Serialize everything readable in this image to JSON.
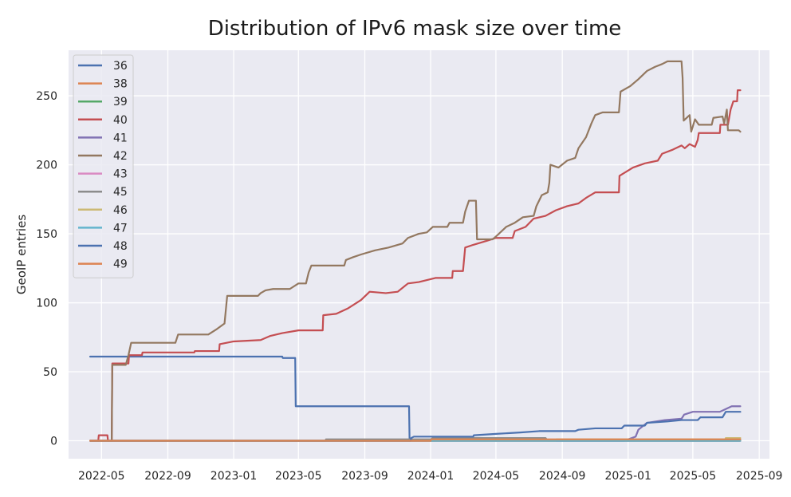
{
  "chart_data": {
    "type": "line",
    "title": "Distribution of IPv6 mask size over time",
    "xlabel": "",
    "ylabel": "GeoIP entries",
    "x_type": "date",
    "xlim": [
      "2022-03-01",
      "2025-09-20"
    ],
    "ylim": [
      -13,
      283
    ],
    "x_ticks": [
      "2022-05",
      "2022-09",
      "2023-01",
      "2023-05",
      "2023-09",
      "2024-01",
      "2024-05",
      "2024-09",
      "2025-01",
      "2025-05",
      "2025-09"
    ],
    "y_ticks": [
      0,
      50,
      100,
      150,
      200,
      250
    ],
    "grid": true,
    "legend_position": "upper-left",
    "series": [
      {
        "name": "36",
        "color": "#4c72b0",
        "points": [
          [
            "2022-04-10",
            61
          ],
          [
            "2023-04-01",
            61
          ],
          [
            "2023-04-02",
            60
          ],
          [
            "2023-04-25",
            60
          ],
          [
            "2023-04-26",
            25
          ],
          [
            "2023-11-22",
            25
          ],
          [
            "2023-11-23",
            0
          ],
          [
            "2025-07-28",
            0
          ]
        ]
      },
      {
        "name": "38",
        "color": "#dd8452",
        "points": [
          [
            "2022-04-10",
            0
          ],
          [
            "2025-07-28",
            0
          ]
        ]
      },
      {
        "name": "39",
        "color": "#55a868",
        "points": [
          [
            "2022-04-10",
            0
          ],
          [
            "2025-07-28",
            0
          ]
        ]
      },
      {
        "name": "40",
        "color": "#c44e52",
        "points": [
          [
            "2022-04-10",
            0
          ],
          [
            "2022-04-25",
            0
          ],
          [
            "2022-04-26",
            4
          ],
          [
            "2022-05-12",
            4
          ],
          [
            "2022-05-13",
            0
          ],
          [
            "2022-05-20",
            0
          ],
          [
            "2022-05-21",
            56
          ],
          [
            "2022-06-20",
            56
          ],
          [
            "2022-06-21",
            62
          ],
          [
            "2022-07-15",
            62
          ],
          [
            "2022-07-16",
            64
          ],
          [
            "2022-10-20",
            64
          ],
          [
            "2022-10-21",
            65
          ],
          [
            "2022-12-05",
            65
          ],
          [
            "2022-12-06",
            70
          ],
          [
            "2023-01-01",
            72
          ],
          [
            "2023-02-20",
            73
          ],
          [
            "2023-03-10",
            76
          ],
          [
            "2023-04-01",
            78
          ],
          [
            "2023-05-01",
            80
          ],
          [
            "2023-06-15",
            80
          ],
          [
            "2023-06-16",
            91
          ],
          [
            "2023-07-10",
            92
          ],
          [
            "2023-08-01",
            96
          ],
          [
            "2023-08-25",
            102
          ],
          [
            "2023-09-10",
            108
          ],
          [
            "2023-10-10",
            107
          ],
          [
            "2023-11-01",
            108
          ],
          [
            "2023-11-20",
            114
          ],
          [
            "2023-12-10",
            115
          ],
          [
            "2024-01-10",
            118
          ],
          [
            "2024-02-10",
            118
          ],
          [
            "2024-02-11",
            123
          ],
          [
            "2024-03-01",
            123
          ],
          [
            "2024-03-05",
            140
          ],
          [
            "2024-03-20",
            142
          ],
          [
            "2024-04-15",
            145
          ],
          [
            "2024-05-01",
            147
          ],
          [
            "2024-06-01",
            147
          ],
          [
            "2024-06-05",
            152
          ],
          [
            "2024-06-25",
            155
          ],
          [
            "2024-07-10",
            161
          ],
          [
            "2024-08-01",
            163
          ],
          [
            "2024-08-20",
            167
          ],
          [
            "2024-09-10",
            170
          ],
          [
            "2024-10-01",
            172
          ],
          [
            "2024-10-15",
            176
          ],
          [
            "2024-11-01",
            180
          ],
          [
            "2024-12-15",
            180
          ],
          [
            "2024-12-16",
            192
          ],
          [
            "2025-01-10",
            198
          ],
          [
            "2025-02-01",
            201
          ],
          [
            "2025-02-25",
            203
          ],
          [
            "2025-03-05",
            208
          ],
          [
            "2025-03-25",
            211
          ],
          [
            "2025-04-10",
            214
          ],
          [
            "2025-04-16",
            212
          ],
          [
            "2025-04-25",
            215
          ],
          [
            "2025-05-05",
            213
          ],
          [
            "2025-05-10",
            218
          ],
          [
            "2025-05-12",
            223
          ],
          [
            "2025-06-20",
            223
          ],
          [
            "2025-06-21",
            229
          ],
          [
            "2025-07-05",
            229
          ],
          [
            "2025-07-10",
            240
          ],
          [
            "2025-07-15",
            246
          ],
          [
            "2025-07-22",
            246
          ],
          [
            "2025-07-23",
            254
          ],
          [
            "2025-07-28",
            254
          ]
        ]
      },
      {
        "name": "41",
        "color": "#8172b3",
        "points": [
          [
            "2022-04-10",
            0
          ],
          [
            "2024-12-25",
            0
          ],
          [
            "2025-01-15",
            3
          ],
          [
            "2025-01-20",
            8
          ],
          [
            "2025-02-05",
            13
          ],
          [
            "2025-03-10",
            15
          ],
          [
            "2025-04-10",
            16
          ],
          [
            "2025-04-15",
            19
          ],
          [
            "2025-05-01",
            21
          ],
          [
            "2025-06-20",
            21
          ],
          [
            "2025-07-01",
            23
          ],
          [
            "2025-07-12",
            25
          ],
          [
            "2025-07-28",
            25
          ]
        ]
      },
      {
        "name": "42",
        "color": "#937860",
        "points": [
          [
            "2022-04-10",
            0
          ],
          [
            "2022-05-20",
            0
          ],
          [
            "2022-05-21",
            55
          ],
          [
            "2022-06-15",
            55
          ],
          [
            "2022-06-20",
            62
          ],
          [
            "2022-06-25",
            71
          ],
          [
            "2022-09-15",
            71
          ],
          [
            "2022-09-20",
            77
          ],
          [
            "2022-11-15",
            77
          ],
          [
            "2022-12-01",
            81
          ],
          [
            "2022-12-15",
            85
          ],
          [
            "2022-12-20",
            105
          ],
          [
            "2023-02-15",
            105
          ],
          [
            "2023-02-20",
            107
          ],
          [
            "2023-03-01",
            109
          ],
          [
            "2023-03-15",
            110
          ],
          [
            "2023-04-15",
            110
          ],
          [
            "2023-05-01",
            114
          ],
          [
            "2023-05-15",
            114
          ],
          [
            "2023-05-20",
            122
          ],
          [
            "2023-05-25",
            127
          ],
          [
            "2023-07-25",
            127
          ],
          [
            "2023-07-28",
            131
          ],
          [
            "2023-08-10",
            133
          ],
          [
            "2023-08-25",
            135
          ],
          [
            "2023-09-20",
            138
          ],
          [
            "2023-10-15",
            140
          ],
          [
            "2023-11-10",
            143
          ],
          [
            "2023-11-20",
            147
          ],
          [
            "2023-12-10",
            150
          ],
          [
            "2023-12-25",
            151
          ],
          [
            "2024-01-05",
            155
          ],
          [
            "2024-02-01",
            155
          ],
          [
            "2024-02-05",
            158
          ],
          [
            "2024-03-01",
            158
          ],
          [
            "2024-03-05",
            166
          ],
          [
            "2024-03-12",
            174
          ],
          [
            "2024-03-25",
            174
          ],
          [
            "2024-03-27",
            146
          ],
          [
            "2024-04-25",
            146
          ],
          [
            "2024-05-01",
            148
          ],
          [
            "2024-05-20",
            155
          ],
          [
            "2024-06-05",
            158
          ],
          [
            "2024-06-20",
            162
          ],
          [
            "2024-07-10",
            163
          ],
          [
            "2024-07-15",
            170
          ],
          [
            "2024-07-25",
            178
          ],
          [
            "2024-08-05",
            180
          ],
          [
            "2024-08-08",
            187
          ],
          [
            "2024-08-10",
            200
          ],
          [
            "2024-08-25",
            198
          ],
          [
            "2024-09-10",
            203
          ],
          [
            "2024-09-25",
            205
          ],
          [
            "2024-10-01",
            212
          ],
          [
            "2024-10-15",
            220
          ],
          [
            "2024-10-25",
            230
          ],
          [
            "2024-11-01",
            236
          ],
          [
            "2024-11-15",
            238
          ],
          [
            "2024-12-15",
            238
          ],
          [
            "2024-12-18",
            253
          ],
          [
            "2025-01-05",
            257
          ],
          [
            "2025-01-20",
            262
          ],
          [
            "2025-02-05",
            268
          ],
          [
            "2025-02-20",
            271
          ],
          [
            "2025-03-05",
            273
          ],
          [
            "2025-03-15",
            275
          ],
          [
            "2025-04-10",
            275
          ],
          [
            "2025-04-12",
            263
          ],
          [
            "2025-04-14",
            232
          ],
          [
            "2025-04-25",
            236
          ],
          [
            "2025-04-28",
            224
          ],
          [
            "2025-05-05",
            233
          ],
          [
            "2025-05-12",
            229
          ],
          [
            "2025-06-05",
            229
          ],
          [
            "2025-06-08",
            234
          ],
          [
            "2025-06-25",
            235
          ],
          [
            "2025-06-28",
            230
          ],
          [
            "2025-07-03",
            240
          ],
          [
            "2025-07-05",
            225
          ],
          [
            "2025-07-25",
            225
          ],
          [
            "2025-07-28",
            224
          ]
        ]
      },
      {
        "name": "43",
        "color": "#da8bc3",
        "points": [
          [
            "2022-04-10",
            0
          ],
          [
            "2025-07-28",
            0
          ]
        ]
      },
      {
        "name": "45",
        "color": "#8c8c8c",
        "points": [
          [
            "2022-04-10",
            0
          ],
          [
            "2023-06-20",
            0
          ],
          [
            "2023-06-21",
            1
          ],
          [
            "2024-01-01",
            1
          ],
          [
            "2024-01-05",
            2
          ],
          [
            "2024-08-01",
            2
          ],
          [
            "2024-08-05",
            0
          ],
          [
            "2025-07-28",
            0
          ]
        ]
      },
      {
        "name": "46",
        "color": "#ccb974",
        "points": [
          [
            "2022-04-10",
            0
          ],
          [
            "2024-08-20",
            0
          ],
          [
            "2024-08-21",
            1
          ],
          [
            "2025-06-30",
            1
          ],
          [
            "2025-07-01",
            2
          ],
          [
            "2025-07-28",
            2
          ]
        ]
      },
      {
        "name": "47",
        "color": "#64b5cd",
        "points": [
          [
            "2022-04-10",
            0
          ],
          [
            "2025-07-28",
            0
          ]
        ]
      },
      {
        "name": "48",
        "color": "#4c72b0",
        "points": [
          [
            "2022-04-10",
            0
          ],
          [
            "2023-11-25",
            0
          ],
          [
            "2023-11-26",
            2
          ],
          [
            "2023-12-01",
            3
          ],
          [
            "2024-03-20",
            3
          ],
          [
            "2024-03-21",
            4
          ],
          [
            "2024-05-01",
            5
          ],
          [
            "2024-06-15",
            6
          ],
          [
            "2024-07-20",
            7
          ],
          [
            "2024-09-25",
            7
          ],
          [
            "2024-10-01",
            8
          ],
          [
            "2024-11-01",
            9
          ],
          [
            "2024-12-20",
            9
          ],
          [
            "2024-12-25",
            11
          ],
          [
            "2025-02-01",
            11
          ],
          [
            "2025-02-05",
            13
          ],
          [
            "2025-03-15",
            14
          ],
          [
            "2025-04-10",
            15
          ],
          [
            "2025-05-10",
            15
          ],
          [
            "2025-05-15",
            17
          ],
          [
            "2025-06-25",
            17
          ],
          [
            "2025-07-01",
            21
          ],
          [
            "2025-07-28",
            21
          ]
        ]
      },
      {
        "name": "49",
        "color": "#dd8452",
        "points": [
          [
            "2022-04-10",
            0
          ],
          [
            "2024-01-01",
            0
          ],
          [
            "2024-01-02",
            1
          ],
          [
            "2025-07-28",
            1
          ]
        ]
      }
    ]
  }
}
